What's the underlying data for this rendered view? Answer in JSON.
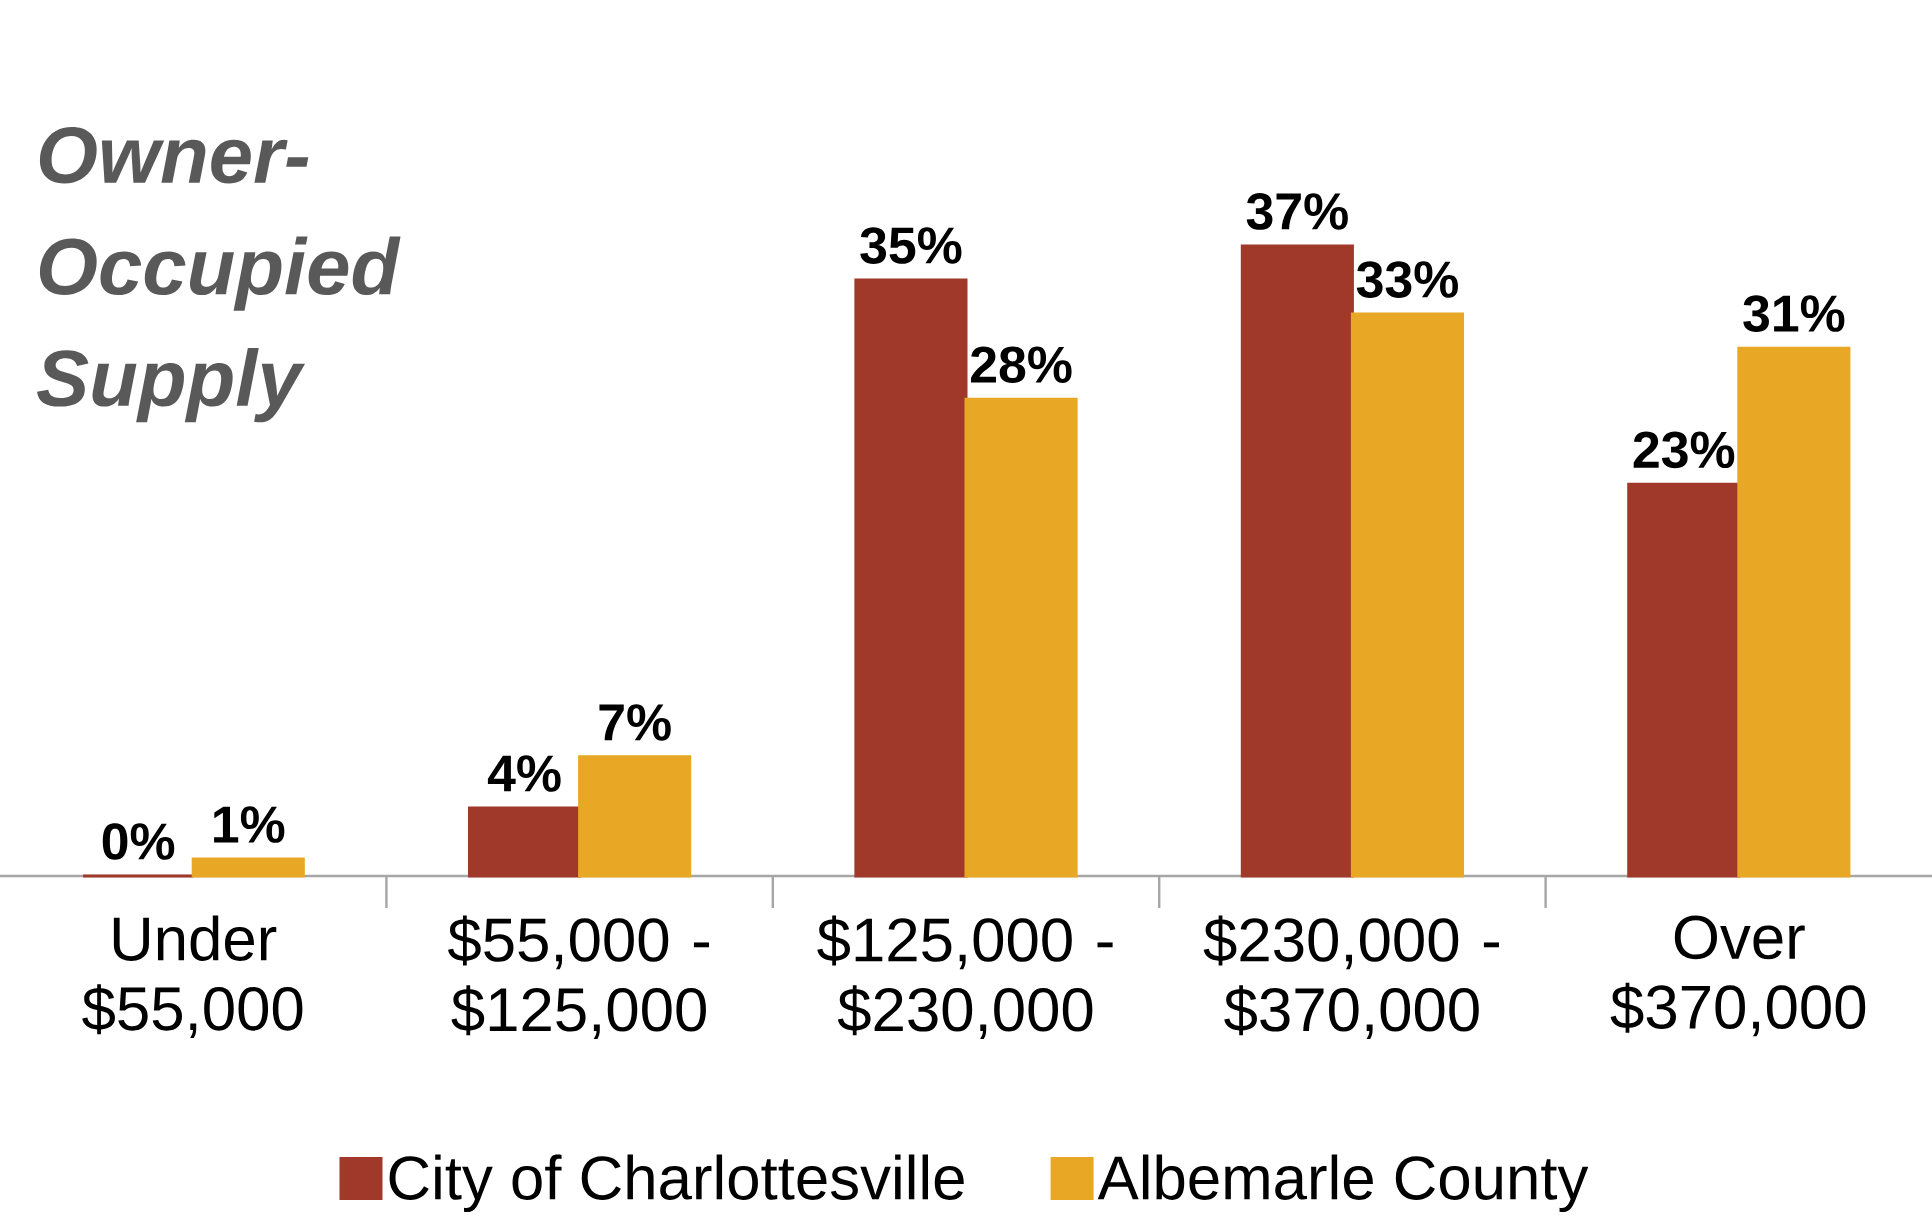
{
  "chart_data": {
    "type": "bar",
    "title": "Owner-Occupied Supply",
    "categories": [
      "Under $55,000",
      "$55,000 - $125,000",
      "$125,000 - $230,000",
      "$230,000 - $370,000",
      "Over $370,000"
    ],
    "series": [
      {
        "name": "City of Charlottesville",
        "color": "#a0392a",
        "values": [
          0,
          4,
          35,
          37,
          23
        ],
        "value_labels": [
          "0%",
          "4%",
          "35%",
          "37%",
          "23%"
        ]
      },
      {
        "name": "Albemarle County",
        "color": "#e8a825",
        "values": [
          1,
          7,
          28,
          33,
          31
        ],
        "value_labels": [
          "1%",
          "7%",
          "28%",
          "33%",
          "31%"
        ]
      }
    ],
    "legend": "bottom"
  }
}
